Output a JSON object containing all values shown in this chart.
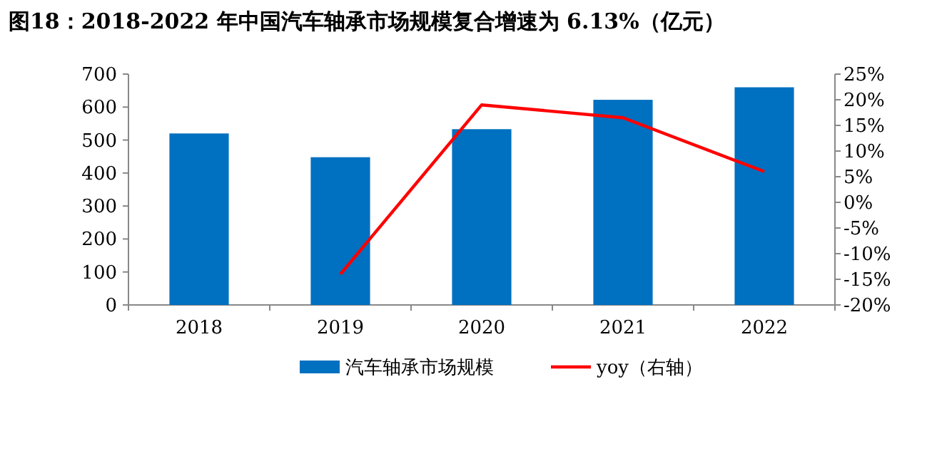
{
  "chart_data": {
    "type": "bar",
    "title": "图18：2018-2022 年中国汽车轴承市场规模复合增速为 6.13%（亿元）",
    "categories": [
      "2018",
      "2019",
      "2020",
      "2021",
      "2022"
    ],
    "series": [
      {
        "name": "汽车轴承市场规模",
        "color": "#0070c0",
        "values": [
          520,
          448,
          533,
          622,
          660
        ]
      },
      {
        "name": "yoy（右轴）",
        "color": "#ff0000",
        "type": "line",
        "axis": "y2",
        "marker": "none",
        "values": [
          null,
          -14,
          19,
          16.5,
          6
        ]
      }
    ],
    "ylim": [
      0,
      700
    ],
    "yticks": [
      0,
      100,
      200,
      300,
      400,
      500,
      600,
      700
    ],
    "y2lim": [
      -20,
      25
    ],
    "y2ticks": [
      {
        "value": -20,
        "label": "-20%"
      },
      {
        "value": -15,
        "label": "-15%"
      },
      {
        "value": -10,
        "label": "-10%"
      },
      {
        "value": -5,
        "label": "-5%"
      },
      {
        "value": 0,
        "label": "0%"
      },
      {
        "value": 5,
        "label": "5%"
      },
      {
        "value": 10,
        "label": "10%"
      },
      {
        "value": 15,
        "label": "15%"
      },
      {
        "value": 20,
        "label": "20%"
      },
      {
        "value": 25,
        "label": "25%"
      }
    ],
    "grid": false,
    "legend": "bottom"
  }
}
